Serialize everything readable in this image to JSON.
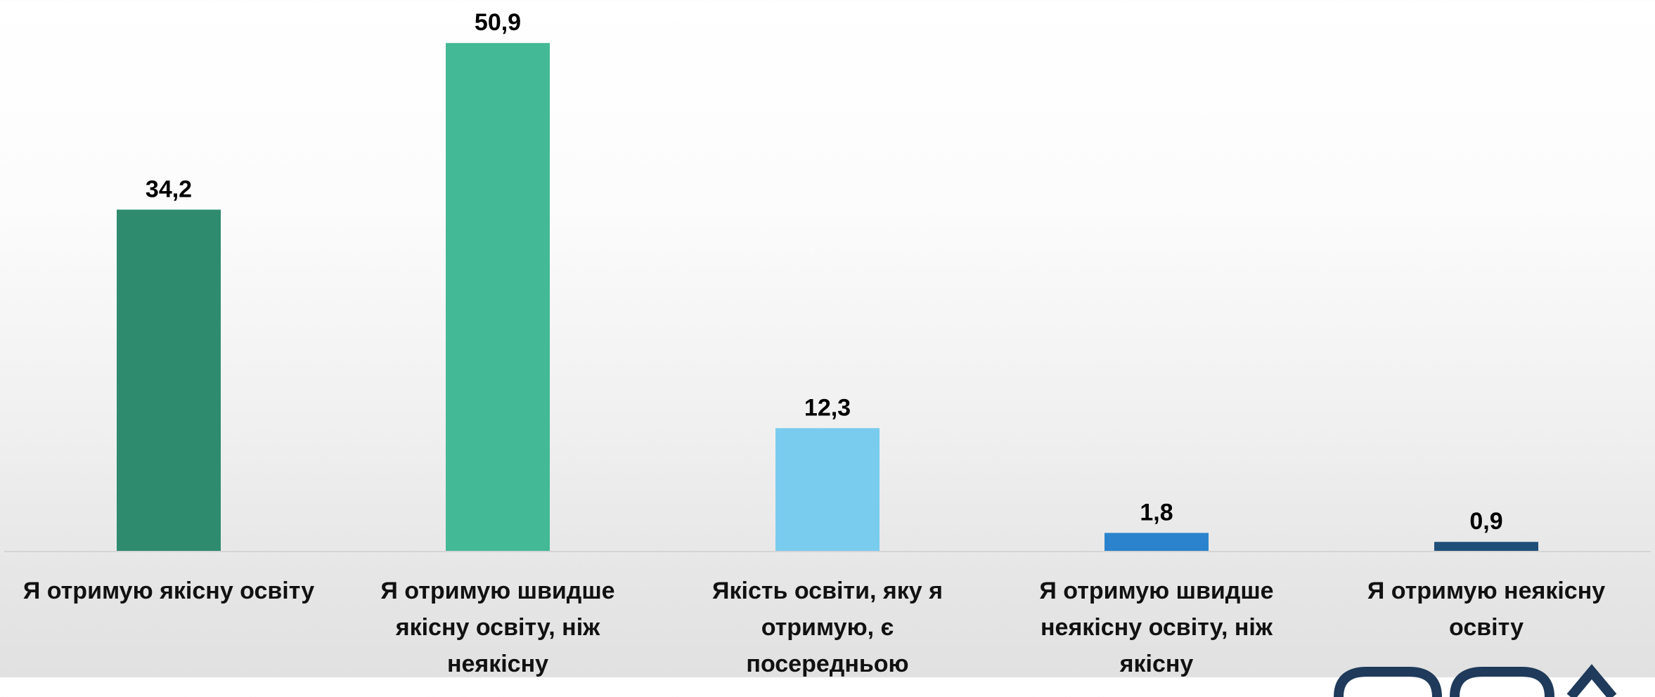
{
  "chart_data": {
    "type": "bar",
    "categories": [
      [
        "Я отримую якісну освіту"
      ],
      [
        "Я отримую швидше",
        "якісну освіту, ніж",
        "неякісну"
      ],
      [
        "Якість освіти, яку я",
        "отримую, є",
        "посередньою"
      ],
      [
        "Я отримую швидше",
        "неякісну освіту, ніж",
        "якісну"
      ],
      [
        "Я отримую неякісну",
        "освіту"
      ]
    ],
    "values": [
      34.2,
      50.9,
      12.3,
      1.8,
      0.9
    ],
    "value_labels": [
      "34,2",
      "50,9",
      "12,3",
      "1,8",
      "0,9"
    ],
    "colors": [
      "#2e8b6e",
      "#43b995",
      "#7accef",
      "#2a83cc",
      "#1f4e79"
    ],
    "ylim": [
      0,
      55
    ],
    "grid": false,
    "legend": "none",
    "title": "",
    "xlabel": "",
    "ylabel": ""
  }
}
